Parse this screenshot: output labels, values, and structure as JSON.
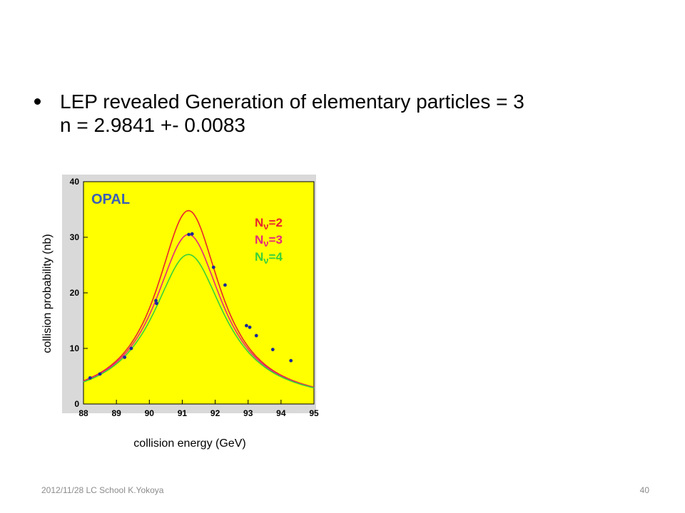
{
  "slide": {
    "bullet_line1": "LEP revealed Generation of elementary particles = 3",
    "bullet_line2": "n = 2.9841 +- 0.0083",
    "footer_left": "2012/11/28 LC School K.Yokoya",
    "page_number": "40"
  },
  "colors": {
    "plot_background": "#ffff00",
    "frame": "#d9d9d9",
    "opal_label": "#3a5fb8",
    "data_points": "#1a2a9a",
    "nu2": "#e8242c",
    "nu3": "#e4287c",
    "nu4": "#39d03a"
  },
  "chart_data": {
    "type": "line",
    "title": "OPAL",
    "xlabel": "collision energy (GeV)",
    "ylabel": "collision probability (nb)",
    "xlim": [
      88,
      95
    ],
    "ylim": [
      0,
      40
    ],
    "x_ticks": [
      "88",
      "89",
      "90",
      "91",
      "92",
      "93",
      "94",
      "95"
    ],
    "y_ticks": [
      "0",
      "10",
      "20",
      "30",
      "40"
    ],
    "grid": false,
    "legend_position": "top-right",
    "series": [
      {
        "name": "Nν=2",
        "legend_sym": "N",
        "legend_sub": "ν",
        "legend_val": "=2",
        "color_key": "nu2",
        "peak": 34.8,
        "mass": 91.19,
        "width": 2.35
      },
      {
        "name": "Nν=3",
        "legend_sym": "N",
        "legend_sub": "ν",
        "legend_val": "=3",
        "color_key": "nu3",
        "peak": 30.5,
        "mass": 91.19,
        "width": 2.5
      },
      {
        "name": "Nν=4",
        "legend_sym": "N",
        "legend_sub": "ν",
        "legend_val": "=4",
        "color_key": "nu4",
        "peak": 26.9,
        "mass": 91.19,
        "width": 2.65
      }
    ],
    "points": [
      {
        "x": 88.2,
        "y": 4.7
      },
      {
        "x": 88.5,
        "y": 5.4
      },
      {
        "x": 89.25,
        "y": 8.4
      },
      {
        "x": 89.45,
        "y": 10.0
      },
      {
        "x": 90.2,
        "y": 18.6
      },
      {
        "x": 90.22,
        "y": 18.1
      },
      {
        "x": 91.2,
        "y": 30.5
      },
      {
        "x": 91.3,
        "y": 30.6
      },
      {
        "x": 91.95,
        "y": 24.6
      },
      {
        "x": 92.3,
        "y": 21.4
      },
      {
        "x": 92.95,
        "y": 14.1
      },
      {
        "x": 93.05,
        "y": 13.8
      },
      {
        "x": 93.25,
        "y": 12.3
      },
      {
        "x": 93.75,
        "y": 9.8
      },
      {
        "x": 94.3,
        "y": 7.8
      }
    ]
  }
}
